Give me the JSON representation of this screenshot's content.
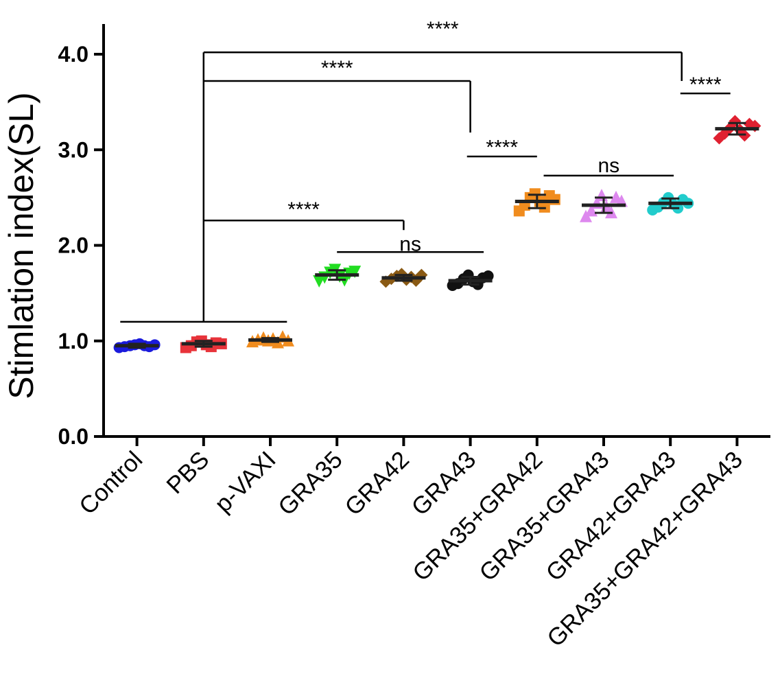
{
  "chart_data": {
    "type": "scatter",
    "ylabel": "Stimlation index(SL)",
    "xlabel": "",
    "ylim": [
      0,
      4.2
    ],
    "yticks": [
      {
        "value": 0,
        "label": "0.0"
      },
      {
        "value": 1,
        "label": "1.0"
      },
      {
        "value": 2,
        "label": "2.0"
      },
      {
        "value": 3,
        "label": "3.0"
      },
      {
        "value": 4,
        "label": "4.0"
      }
    ],
    "categories": [
      "Control",
      "PBS",
      "p-VAXI",
      "GRA35",
      "GRA42",
      "GRA43",
      "GRA35+GRA42",
      "GRA35+GRA43",
      "GRA42+GRA43",
      "GRA35+GRA42+GRA43"
    ],
    "groups": [
      {
        "name": "Control",
        "marker": "circle",
        "color": "#1a1adc",
        "mean": 0.95,
        "sd": 0.02,
        "points": [
          0.93,
          0.94,
          0.95,
          0.96,
          0.97,
          0.95,
          0.94,
          0.96
        ]
      },
      {
        "name": "PBS",
        "marker": "square",
        "color": "#e8333a",
        "mean": 0.97,
        "sd": 0.03,
        "points": [
          0.93,
          0.95,
          0.99,
          1.0,
          0.96,
          0.94,
          0.98,
          0.97
        ]
      },
      {
        "name": "p-VAXI",
        "marker": "triangle-up",
        "color": "#f08c1e",
        "mean": 1.01,
        "sd": 0.02,
        "points": [
          0.99,
          1.01,
          1.03,
          1.0,
          1.02,
          0.98,
          1.04,
          1.0
        ]
      },
      {
        "name": "GRA35",
        "marker": "triangle-down",
        "color": "#22dd22",
        "mean": 1.69,
        "sd": 0.05,
        "points": [
          1.63,
          1.67,
          1.72,
          1.75,
          1.68,
          1.64,
          1.71,
          1.73
        ]
      },
      {
        "name": "GRA42",
        "marker": "diamond",
        "color": "#8a5a14",
        "mean": 1.66,
        "sd": 0.03,
        "points": [
          1.62,
          1.65,
          1.68,
          1.7,
          1.64,
          1.67,
          1.63,
          1.69
        ]
      },
      {
        "name": "GRA43",
        "marker": "circle",
        "color": "#111111",
        "mean": 1.63,
        "sd": 0.04,
        "points": [
          1.58,
          1.6,
          1.65,
          1.69,
          1.62,
          1.59,
          1.66,
          1.68
        ]
      },
      {
        "name": "GRA35+GRA42",
        "marker": "square",
        "color": "#f08c1e",
        "mean": 2.46,
        "sd": 0.07,
        "points": [
          2.36,
          2.42,
          2.5,
          2.54,
          2.46,
          2.4,
          2.52,
          2.48
        ]
      },
      {
        "name": "GRA35+GRA43",
        "marker": "triangle-up",
        "color": "#dd88ee",
        "mean": 2.42,
        "sd": 0.08,
        "points": [
          2.3,
          2.36,
          2.44,
          2.52,
          2.4,
          2.34,
          2.5,
          2.46
        ]
      },
      {
        "name": "GRA42+GRA43",
        "marker": "circle",
        "color": "#22cccc",
        "mean": 2.44,
        "sd": 0.05,
        "points": [
          2.37,
          2.4,
          2.45,
          2.5,
          2.43,
          2.39,
          2.48,
          2.44
        ]
      },
      {
        "name": "GRA35+GRA42+GRA43",
        "marker": "diamond",
        "color": "#e02030",
        "mean": 3.22,
        "sd": 0.06,
        "points": [
          3.12,
          3.17,
          3.23,
          3.3,
          3.21,
          3.15,
          3.27,
          3.25
        ]
      }
    ],
    "annotations": [
      {
        "label": "****",
        "kind": "group",
        "bar_y": 4.02,
        "from_cat": 1,
        "to_cat": 8.17,
        "label_y": 4.28,
        "left_drop_to": 1.2,
        "right_drop_to": 3.72
      },
      {
        "label": "****",
        "kind": "group",
        "bar_y": 3.72,
        "from_cat": 1,
        "to_cat": 5.0,
        "label_y": 3.87,
        "right_drop_to": 3.18
      },
      {
        "label": "****",
        "kind": "group",
        "bar_y": 2.26,
        "from_cat": 1,
        "to_cat": 4.0,
        "label_y": 2.39,
        "right_drop_to": 2.16
      },
      {
        "label": "****",
        "kind": "line",
        "bar_y": 2.93,
        "from_cat": 4.95,
        "to_cat": 6.0,
        "label_y": 3.04
      },
      {
        "label": "****",
        "kind": "line",
        "bar_y": 3.59,
        "from_cat": 8.15,
        "to_cat": 8.9,
        "label_y": 3.7
      },
      {
        "label": "ns",
        "kind": "line",
        "bar_y": 1.93,
        "from_cat": 3.0,
        "to_cat": 5.2,
        "label_y": 2.03
      },
      {
        "label": "ns",
        "kind": "line",
        "bar_y": 2.73,
        "from_cat": 6.1,
        "to_cat": 8.05,
        "label_y": 2.85
      },
      {
        "label": "",
        "kind": "line",
        "bar_y": 1.2,
        "from_cat": -0.25,
        "to_cat": 2.25
      }
    ]
  }
}
